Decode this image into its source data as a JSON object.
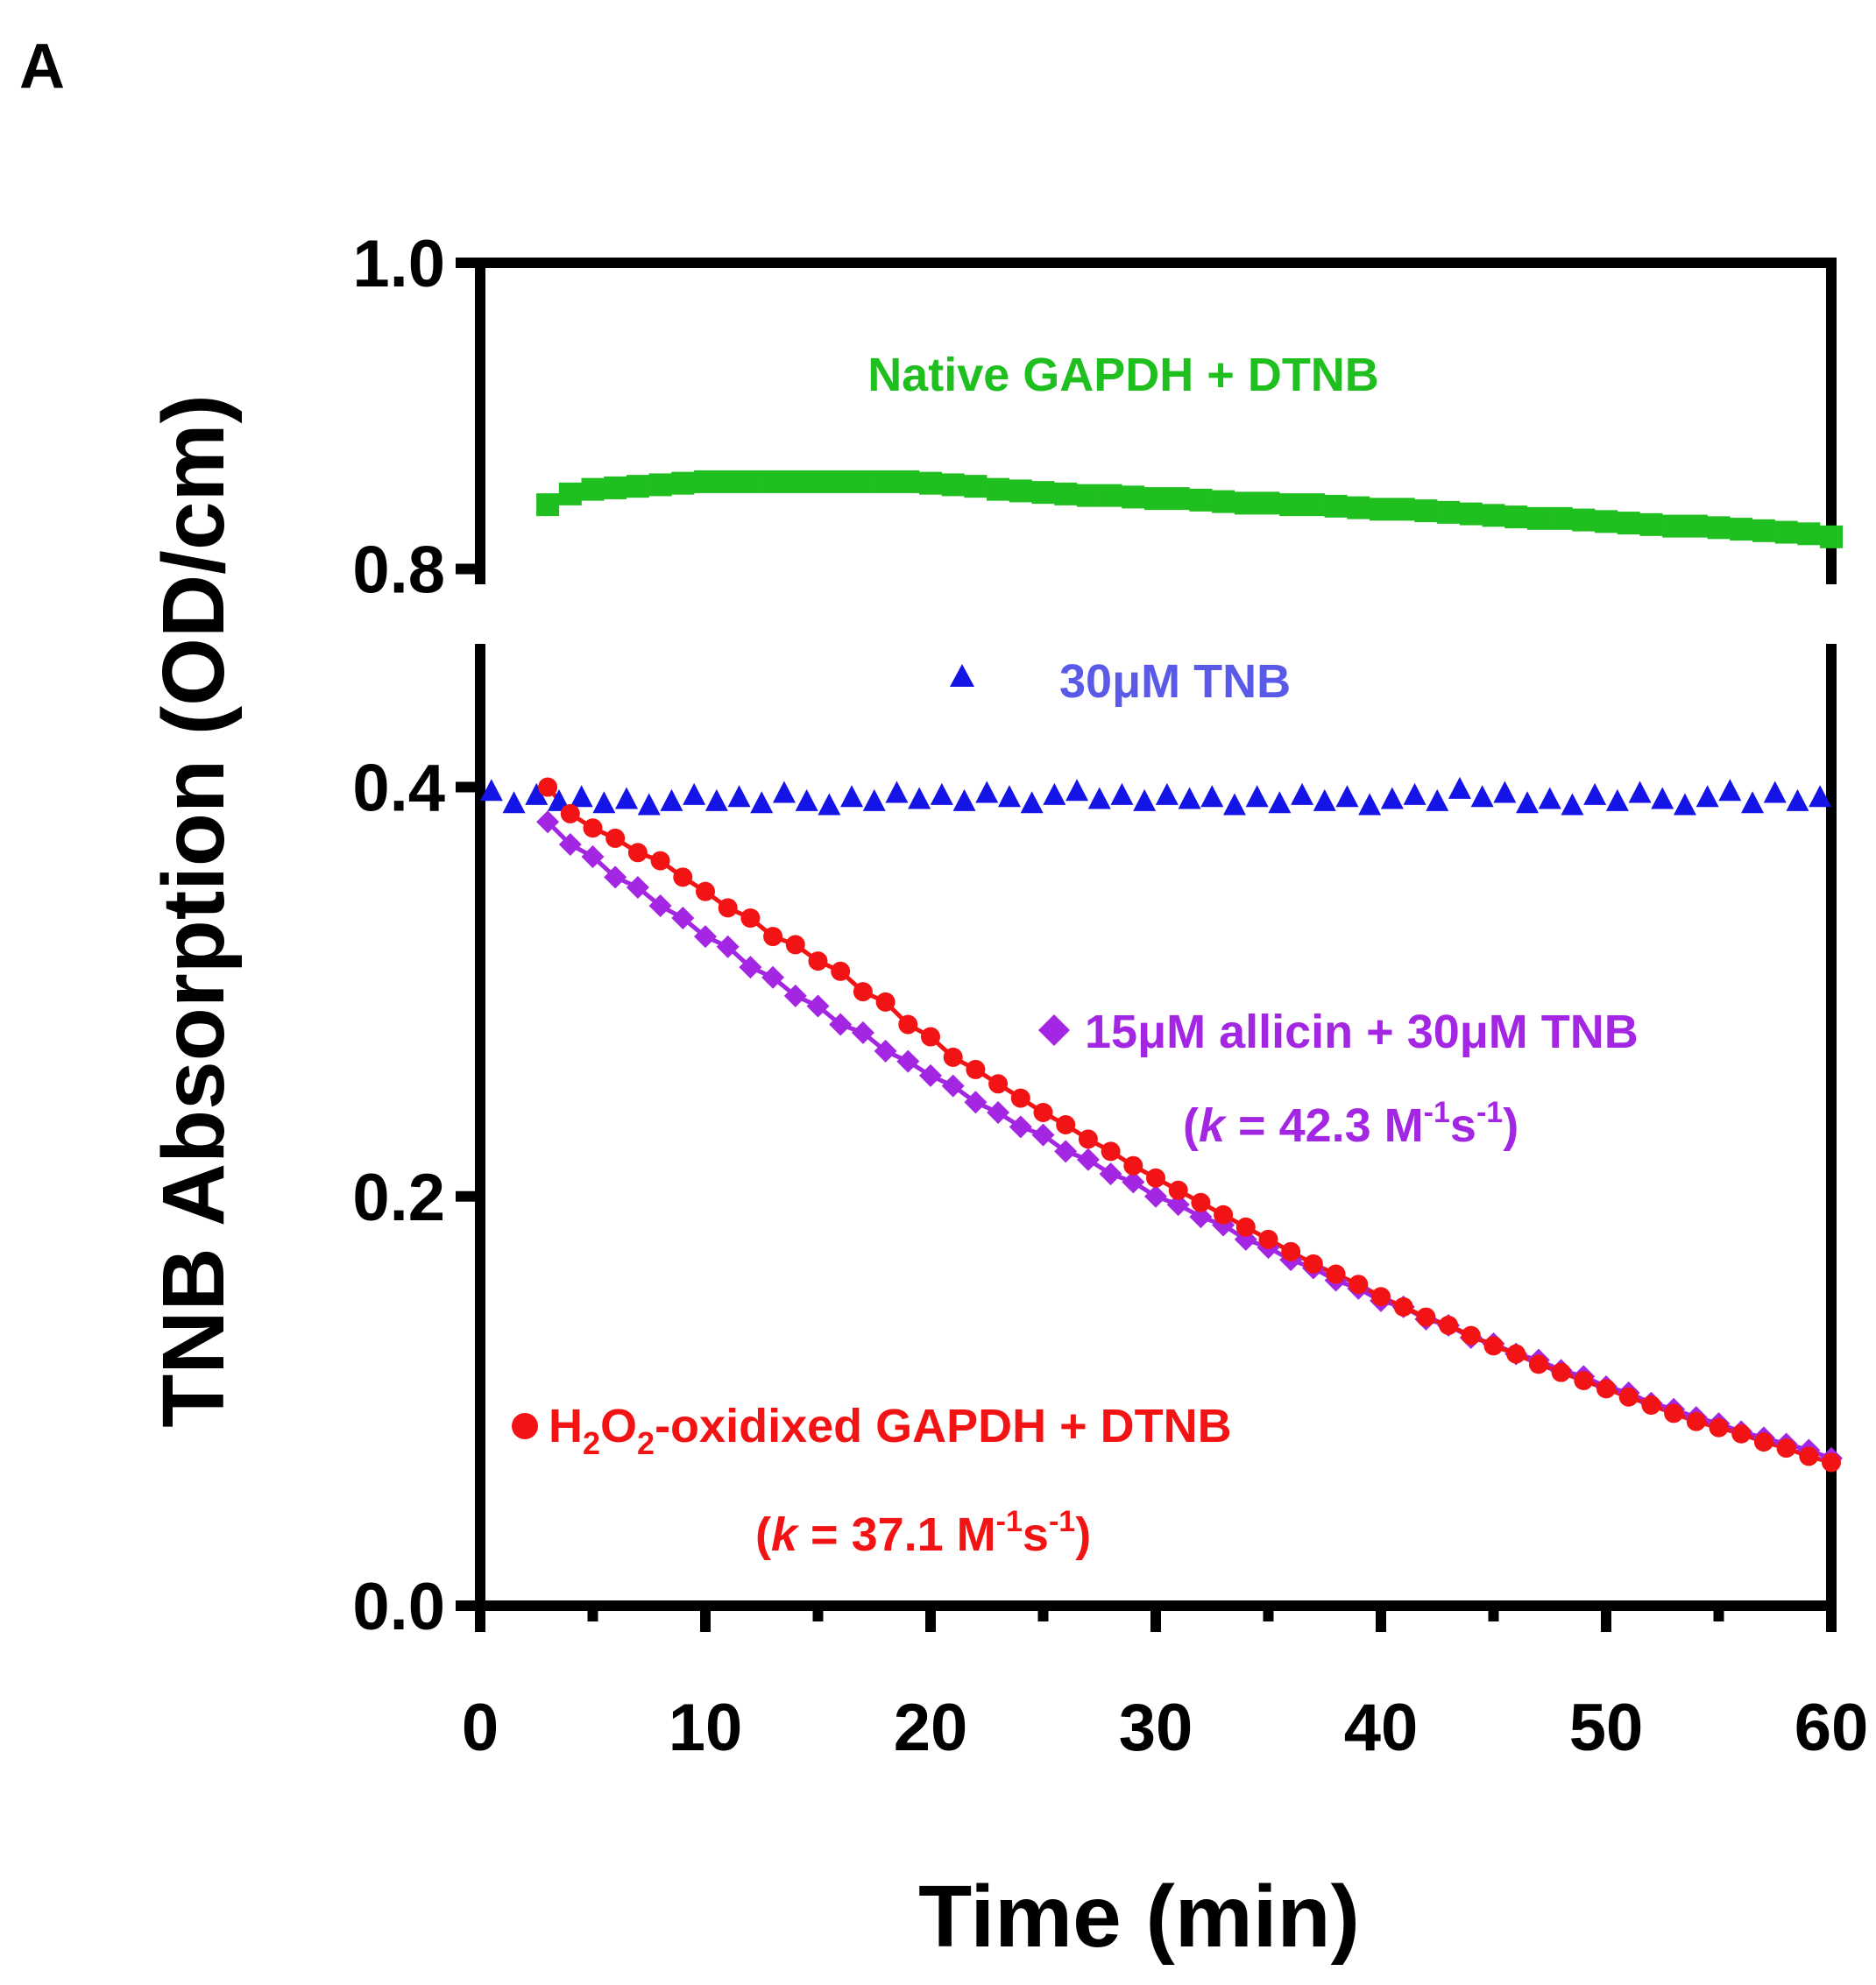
{
  "panel_label": "A",
  "chart_data": {
    "type": "scatter",
    "title": "",
    "xlabel": "Time (min)",
    "ylabel": "TNB Absorption (OD/cm)",
    "xlim": [
      0,
      60
    ],
    "x_ticks": [
      "0",
      "10",
      "20",
      "30",
      "40",
      "50",
      "60"
    ],
    "y_axis_break": true,
    "y_segments": [
      {
        "range": [
          0.0,
          0.47
        ],
        "ticks": [
          "0.0",
          "0.2",
          "0.4"
        ]
      },
      {
        "range": [
          0.79,
          1.0
        ],
        "ticks": [
          "0.8",
          "1.0"
        ]
      }
    ],
    "colors": {
      "native": "#1fbf1f",
      "tnb": "#1414e6",
      "allicin": "#a326e3",
      "h2o2": "#f21414",
      "axis": "#000000"
    },
    "series": [
      {
        "name": "Native GAPDH + DTNB",
        "marker": "square",
        "key": "native",
        "x": [
          3,
          4,
          5,
          6,
          7,
          8,
          9,
          10,
          11,
          12,
          13,
          14,
          15,
          16,
          17,
          18,
          19,
          20,
          21,
          22,
          23,
          24,
          25,
          26,
          27,
          28,
          29,
          30,
          31,
          32,
          33,
          34,
          35,
          36,
          37,
          38,
          39,
          40,
          41,
          42,
          43,
          44,
          45,
          46,
          47,
          48,
          49,
          50,
          51,
          52,
          53,
          54,
          55,
          56,
          57,
          58,
          59,
          60
        ],
        "y": [
          0.842,
          0.849,
          0.852,
          0.853,
          0.854,
          0.855,
          0.856,
          0.857,
          0.857,
          0.857,
          0.857,
          0.857,
          0.857,
          0.857,
          0.857,
          0.857,
          0.857,
          0.856,
          0.855,
          0.854,
          0.852,
          0.851,
          0.85,
          0.849,
          0.848,
          0.848,
          0.847,
          0.846,
          0.846,
          0.845,
          0.844,
          0.843,
          0.843,
          0.842,
          0.842,
          0.841,
          0.84,
          0.839,
          0.839,
          0.838,
          0.837,
          0.836,
          0.835,
          0.834,
          0.833,
          0.833,
          0.832,
          0.831,
          0.83,
          0.829,
          0.828,
          0.828,
          0.827,
          0.826,
          0.825,
          0.824,
          0.823,
          0.821
        ]
      },
      {
        "name": "30μM TNB",
        "marker": "triangle",
        "key": "tnb",
        "x": [
          0.5,
          1.5,
          2.5,
          3.5,
          4.5,
          5.5,
          6.5,
          7.5,
          8.5,
          9.5,
          10.5,
          11.5,
          12.5,
          13.5,
          14.5,
          15.5,
          16.5,
          17.5,
          18.5,
          19.5,
          20.5,
          21.5,
          22.5,
          23.5,
          24.5,
          25.5,
          26.5,
          27.5,
          28.5,
          29.5,
          30.5,
          31.5,
          32.5,
          33.5,
          34.5,
          35.5,
          36.5,
          37.5,
          38.5,
          39.5,
          40.5,
          41.5,
          42.5,
          43.5,
          44.5,
          45.5,
          46.5,
          47.5,
          48.5,
          49.5,
          50.5,
          51.5,
          52.5,
          53.5,
          54.5,
          55.5,
          56.5,
          57.5,
          58.5,
          59.5
        ],
        "y": [
          0.398,
          0.392,
          0.396,
          0.393,
          0.395,
          0.392,
          0.394,
          0.391,
          0.393,
          0.396,
          0.393,
          0.395,
          0.392,
          0.397,
          0.393,
          0.391,
          0.395,
          0.393,
          0.397,
          0.394,
          0.396,
          0.393,
          0.397,
          0.395,
          0.392,
          0.396,
          0.398,
          0.394,
          0.396,
          0.393,
          0.396,
          0.394,
          0.395,
          0.391,
          0.395,
          0.392,
          0.396,
          0.393,
          0.395,
          0.391,
          0.394,
          0.396,
          0.393,
          0.399,
          0.395,
          0.397,
          0.392,
          0.394,
          0.391,
          0.396,
          0.393,
          0.397,
          0.394,
          0.391,
          0.395,
          0.398,
          0.392,
          0.397,
          0.393,
          0.395
        ]
      },
      {
        "name": "15μM allicin + 30μM TNB",
        "k_label": "(k = 42.3 M⁻¹s⁻¹)",
        "marker": "diamond",
        "key": "allicin",
        "x": [
          3,
          4,
          5,
          6,
          7,
          8,
          9,
          10,
          11,
          12,
          13,
          14,
          15,
          16,
          17,
          18,
          19,
          20,
          21,
          22,
          23,
          24,
          25,
          26,
          27,
          28,
          29,
          30,
          31,
          32,
          33,
          34,
          35,
          36,
          37,
          38,
          39,
          40,
          41,
          42,
          43,
          44,
          45,
          46,
          47,
          48,
          49,
          50,
          51,
          52,
          53,
          54,
          55,
          56,
          57,
          58,
          59,
          60
        ],
        "y": [
          0.383,
          0.372,
          0.366,
          0.356,
          0.351,
          0.342,
          0.336,
          0.327,
          0.322,
          0.312,
          0.307,
          0.298,
          0.293,
          0.284,
          0.28,
          0.271,
          0.266,
          0.259,
          0.254,
          0.246,
          0.241,
          0.234,
          0.23,
          0.222,
          0.218,
          0.211,
          0.207,
          0.2,
          0.196,
          0.19,
          0.186,
          0.179,
          0.175,
          0.169,
          0.165,
          0.159,
          0.155,
          0.149,
          0.146,
          0.14,
          0.137,
          0.131,
          0.128,
          0.123,
          0.12,
          0.115,
          0.112,
          0.107,
          0.104,
          0.099,
          0.096,
          0.092,
          0.089,
          0.085,
          0.082,
          0.079,
          0.076,
          0.072
        ]
      },
      {
        "name": "H2O2-oxidixed GAPDH + DTNB",
        "k_label": "(k = 37.1 M⁻¹s⁻¹)",
        "marker": "circle",
        "key": "h2o2",
        "x": [
          3,
          4,
          5,
          6,
          7,
          8,
          9,
          10,
          11,
          12,
          13,
          14,
          15,
          16,
          17,
          18,
          19,
          20,
          21,
          22,
          23,
          24,
          25,
          26,
          27,
          28,
          29,
          30,
          31,
          32,
          33,
          34,
          35,
          36,
          37,
          38,
          39,
          40,
          41,
          42,
          43,
          44,
          45,
          46,
          47,
          48,
          49,
          50,
          51,
          52,
          53,
          54,
          55,
          56,
          57,
          58,
          59,
          60
        ],
        "y": [
          0.4,
          0.387,
          0.38,
          0.375,
          0.368,
          0.364,
          0.356,
          0.349,
          0.341,
          0.336,
          0.327,
          0.323,
          0.315,
          0.31,
          0.3,
          0.295,
          0.284,
          0.278,
          0.268,
          0.262,
          0.255,
          0.248,
          0.241,
          0.235,
          0.228,
          0.222,
          0.215,
          0.209,
          0.203,
          0.197,
          0.191,
          0.185,
          0.179,
          0.173,
          0.167,
          0.162,
          0.157,
          0.151,
          0.146,
          0.141,
          0.137,
          0.132,
          0.127,
          0.123,
          0.118,
          0.114,
          0.11,
          0.106,
          0.102,
          0.098,
          0.094,
          0.09,
          0.087,
          0.084,
          0.08,
          0.077,
          0.073,
          0.07
        ]
      }
    ],
    "legend": {
      "native": "Native GAPDH + DTNB",
      "tnb": "30μM TNB",
      "allicin": "15μM allicin + 30μM TNB",
      "allicin_k_open": "(",
      "allicin_k_italic": "k",
      "allicin_k_value": " = 42.3 M",
      "allicin_k_unit_s": "s",
      "allicin_k_close": ")",
      "h2o2_h": "H",
      "h2o2_o": "O",
      "h2o2_rest": "-oxidixed GAPDH + DTNB",
      "h2o2_sub": "2",
      "h2o2_k_open": "(",
      "h2o2_k_italic": "k",
      "h2o2_k_value": " = 37.1 M",
      "h2o2_k_unit_s": "s",
      "h2o2_k_close": ")",
      "sup_neg1": "-1"
    }
  }
}
